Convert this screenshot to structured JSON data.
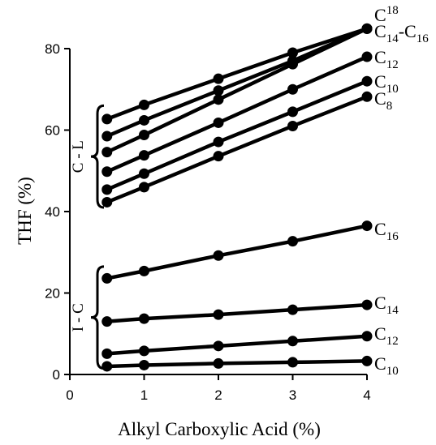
{
  "chart_data": {
    "type": "line",
    "xlabel": "Alkyl Carboxylic Acid (%)",
    "ylabel": "THF (%)",
    "xlim": [
      0,
      4
    ],
    "ylim": [
      0,
      80
    ],
    "xticks": [
      "0",
      "1",
      "2",
      "3",
      "4"
    ],
    "yticks": [
      "0",
      "20",
      "40",
      "60",
      "80"
    ],
    "grid": false,
    "x": [
      0.5,
      1,
      2,
      3,
      4
    ],
    "series": [
      {
        "values": [
          62.7,
          66.2,
          72.6,
          79.0,
          84.9
        ]
      },
      {
        "values": [
          58.5,
          62.4,
          69.7,
          77.0,
          84.9
        ]
      },
      {
        "values": [
          54.6,
          58.8,
          67.5,
          76.2,
          84.9
        ]
      },
      {
        "values": [
          49.8,
          53.8,
          61.8,
          70.0,
          78.0
        ]
      },
      {
        "values": [
          45.4,
          49.3,
          57.1,
          64.5,
          72.0
        ]
      },
      {
        "values": [
          42.3,
          46.0,
          53.6,
          61.0,
          68.2
        ]
      },
      {
        "values": [
          23.6,
          25.4,
          29.2,
          32.7,
          36.5
        ]
      },
      {
        "values": [
          13.0,
          13.7,
          14.7,
          15.9,
          17.1
        ]
      },
      {
        "values": [
          5.1,
          5.8,
          7.0,
          8.2,
          9.4
        ]
      },
      {
        "values": [
          2.0,
          2.3,
          2.7,
          3.0,
          3.3
        ]
      }
    ],
    "annotations": [
      {
        "id": "c18",
        "base": "C",
        "sup": "18",
        "sub": ""
      },
      {
        "id": "c14c16",
        "base": "C",
        "sup": "",
        "sub": "14",
        "mid": "-C",
        "sub2": "16"
      },
      {
        "id": "c12u",
        "base": "C",
        "sup": "",
        "sub": "12"
      },
      {
        "id": "c10u",
        "base": "C",
        "sup": "",
        "sub": "10"
      },
      {
        "id": "c8",
        "base": "C",
        "sup": "",
        "sub": "8"
      },
      {
        "id": "c16l",
        "base": "C",
        "sup": "",
        "sub": "16"
      },
      {
        "id": "c14l",
        "base": "C",
        "sup": "",
        "sub": "14"
      },
      {
        "id": "c12l",
        "base": "C",
        "sup": "",
        "sub": "12"
      },
      {
        "id": "c10l",
        "base": "C",
        "sup": "",
        "sub": "10"
      }
    ],
    "brackets": [
      {
        "label": "C - L",
        "range": [
          41,
          66
        ]
      },
      {
        "label": "I - C",
        "range": [
          1.5,
          26.5
        ]
      }
    ],
    "line_color": "#000000"
  }
}
